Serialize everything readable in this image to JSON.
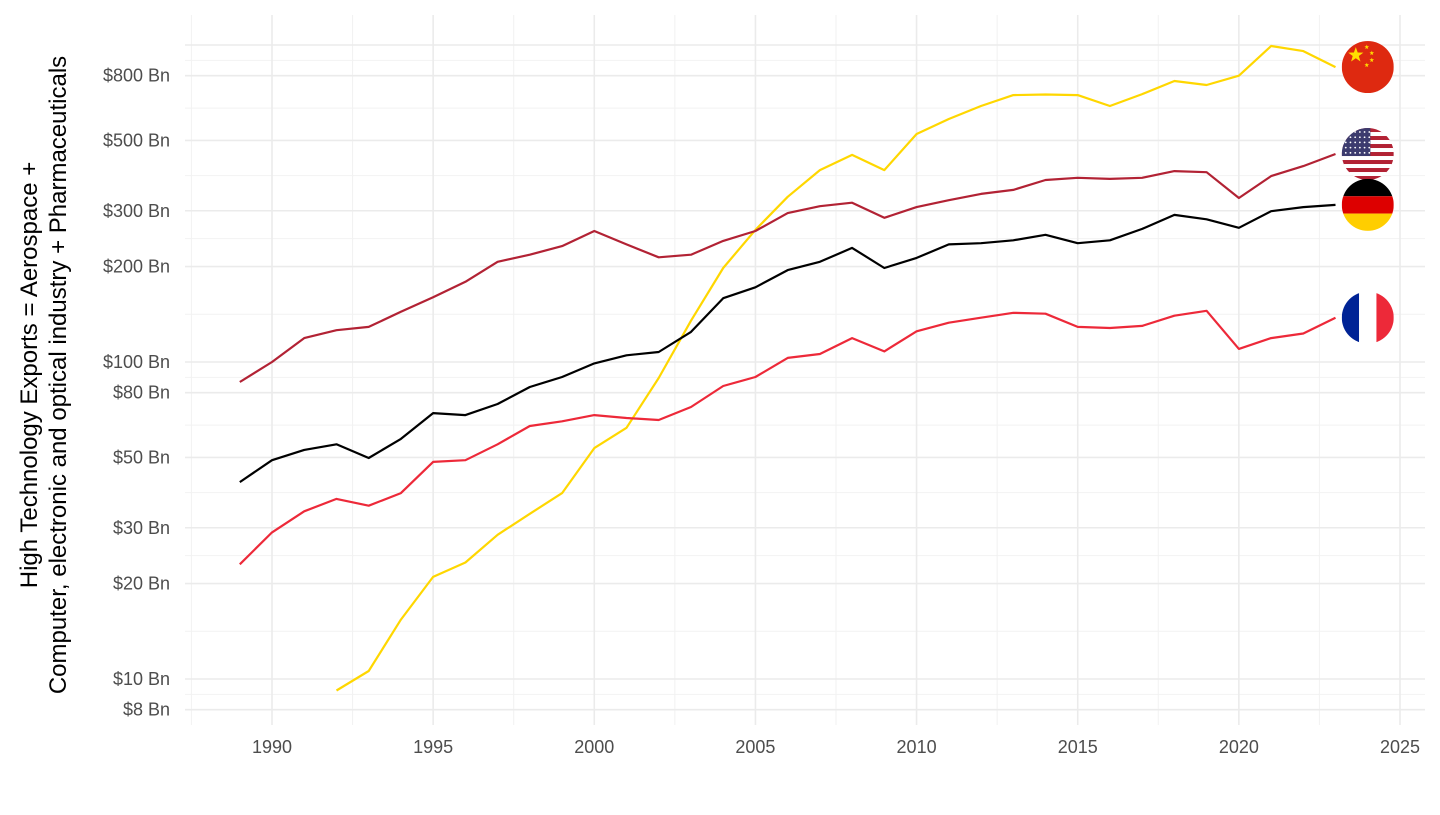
{
  "chart_data": {
    "type": "line",
    "title": "",
    "xlabel": "",
    "ylabel_line1": "High Technology Exports = Aerospace +",
    "ylabel_line2": "Computer, electronic and optical industry + Pharmaceuticals",
    "y_scale": "log",
    "ylim": [
      7.2,
      1200
    ],
    "xlim": [
      1987.5,
      2025.8
    ],
    "grid": true,
    "x_ticks": [
      1990,
      1995,
      2000,
      2005,
      2010,
      2015,
      2020,
      2025
    ],
    "x_tick_labels": [
      "1990",
      "1995",
      "2000",
      "2005",
      "2010",
      "2015",
      "2020",
      "2025"
    ],
    "y_ticks": [
      8,
      10,
      20,
      30,
      50,
      80,
      100,
      200,
      300,
      500,
      800
    ],
    "y_tick_labels": [
      "$8 Bn",
      "$10 Bn",
      "$20 Bn",
      "$30 Bn",
      "$50 Bn",
      "$80 Bn",
      "$100 Bn",
      "$200 Bn",
      "$300 Bn",
      "$500 Bn",
      "$800 Bn"
    ],
    "legend": "flags at line ends",
    "series": [
      {
        "id": "china",
        "color": "#FFD700",
        "flag": "china-flag",
        "x": [
          1992,
          1993,
          1994,
          1995,
          1996,
          1997,
          1998,
          1999,
          2000,
          2001,
          2002,
          2003,
          2004,
          2005,
          2006,
          2007,
          2008,
          2009,
          2010,
          2011,
          2012,
          2013,
          2014,
          2015,
          2016,
          2017,
          2018,
          2019,
          2020,
          2021,
          2022,
          2023
        ],
        "values": [
          9.2,
          10.6,
          15.4,
          21,
          23.3,
          28.5,
          33.2,
          38.6,
          53.5,
          62,
          89,
          135,
          198,
          261,
          332,
          403,
          450,
          403,
          524,
          584,
          642,
          695,
          698,
          695,
          642,
          700,
          770,
          748,
          800,
          993,
          957,
          852
        ]
      },
      {
        "id": "united-states",
        "color": "#B22234",
        "flag": "us-flag",
        "x": [
          1989,
          1990,
          1991,
          1992,
          1993,
          1994,
          1995,
          1996,
          1997,
          1998,
          1999,
          2000,
          2001,
          2002,
          2003,
          2004,
          2005,
          2006,
          2007,
          2008,
          2009,
          2010,
          2011,
          2012,
          2013,
          2014,
          2015,
          2016,
          2017,
          2018,
          2019,
          2020,
          2021,
          2022,
          2023
        ],
        "values": [
          86.5,
          100,
          119,
          126,
          129,
          144,
          160,
          179,
          207,
          218,
          232,
          259,
          235,
          214,
          218,
          241,
          259,
          295,
          310,
          318,
          285,
          308,
          324,
          339,
          349,
          375,
          381,
          378,
          381,
          400,
          397,
          329,
          386,
          415,
          453
        ]
      },
      {
        "id": "germany",
        "color": "#000000",
        "flag": "germany-flag",
        "x": [
          1989,
          1990,
          1991,
          1992,
          1993,
          1994,
          1995,
          1996,
          1997,
          1998,
          1999,
          2000,
          2001,
          2002,
          2003,
          2004,
          2005,
          2006,
          2007,
          2008,
          2009,
          2010,
          2011,
          2012,
          2013,
          2014,
          2015,
          2016,
          2017,
          2018,
          2019,
          2020,
          2021,
          2022,
          2023
        ],
        "values": [
          41.8,
          49,
          52.8,
          55,
          49.8,
          57.2,
          69,
          68,
          73.7,
          83.4,
          89.7,
          99,
          105,
          107.5,
          124.4,
          159,
          172,
          195,
          207,
          229,
          198,
          213,
          235,
          237,
          242,
          252,
          237,
          242,
          263,
          291,
          282,
          265,
          299,
          308,
          313
        ]
      },
      {
        "id": "france",
        "color": "#ED2939",
        "flag": "france-flag",
        "x": [
          1989,
          1990,
          1991,
          1992,
          1993,
          1994,
          1995,
          1996,
          1997,
          1998,
          1999,
          2000,
          2001,
          2002,
          2003,
          2004,
          2005,
          2006,
          2007,
          2008,
          2009,
          2010,
          2011,
          2012,
          2013,
          2014,
          2015,
          2016,
          2017,
          2018,
          2019,
          2020,
          2021,
          2022,
          2023
        ],
        "values": [
          23,
          29,
          33.8,
          37,
          35.2,
          38.6,
          48.4,
          49,
          55,
          62.8,
          65,
          68,
          66.6,
          65.6,
          72.1,
          84,
          89.7,
          103,
          106,
          119,
          108,
          125,
          133,
          138,
          143,
          142,
          129,
          128,
          130,
          140,
          145,
          110,
          119,
          123,
          138
        ]
      }
    ]
  }
}
